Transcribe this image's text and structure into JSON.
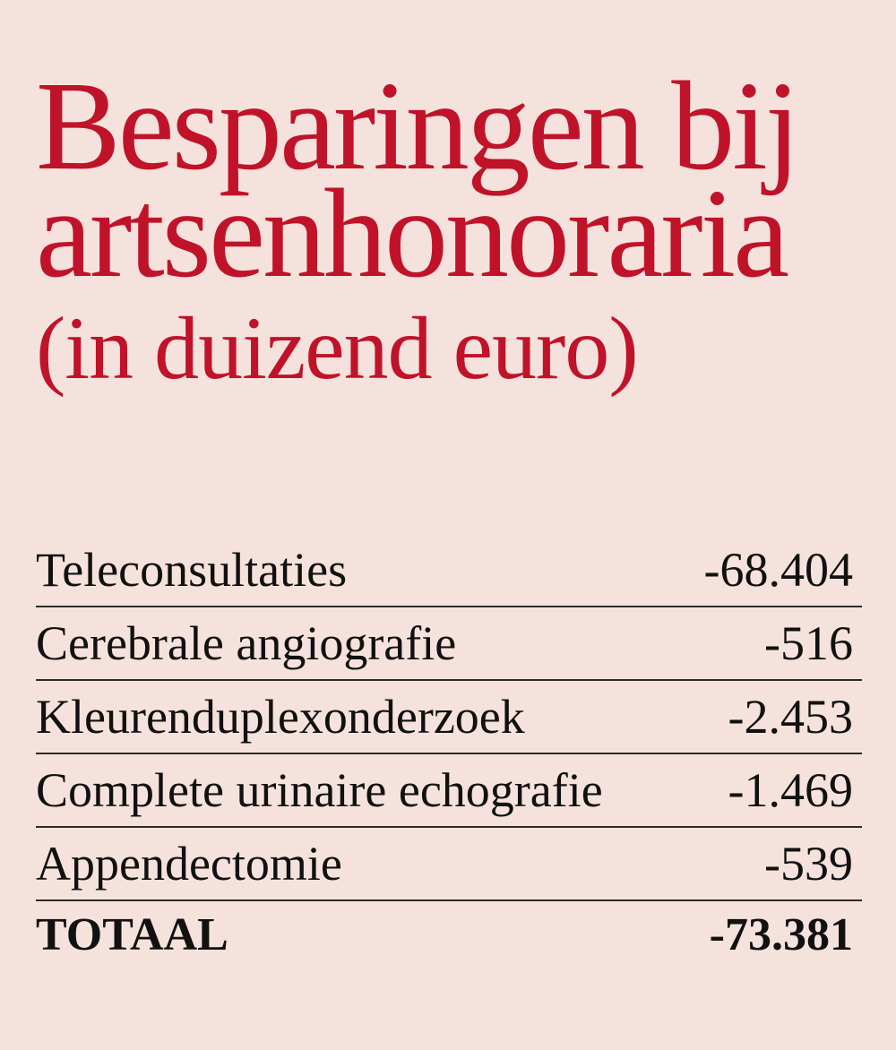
{
  "chart_data": {
    "type": "table",
    "title_lines": [
      "Besparingen bij",
      "artsenhonoraria"
    ],
    "subtitle": "(in duizend euro)",
    "rows": [
      {
        "label": "Teleconsultaties",
        "value": "-68.404"
      },
      {
        "label": "Cerebrale angiografie",
        "value": "-516"
      },
      {
        "label": "Kleurenduplexonderzoek",
        "value": "-2.453"
      },
      {
        "label": "Complete urinaire echografie",
        "value": "-1.469"
      },
      {
        "label": "Appendectomie",
        "value": "-539"
      }
    ],
    "total": {
      "label": "TOTAAL",
      "value": "-73.381"
    },
    "colors": {
      "title": "#c0132a",
      "background": "#f6e2dc",
      "text": "#111111",
      "rule": "#2b2b2b"
    }
  }
}
